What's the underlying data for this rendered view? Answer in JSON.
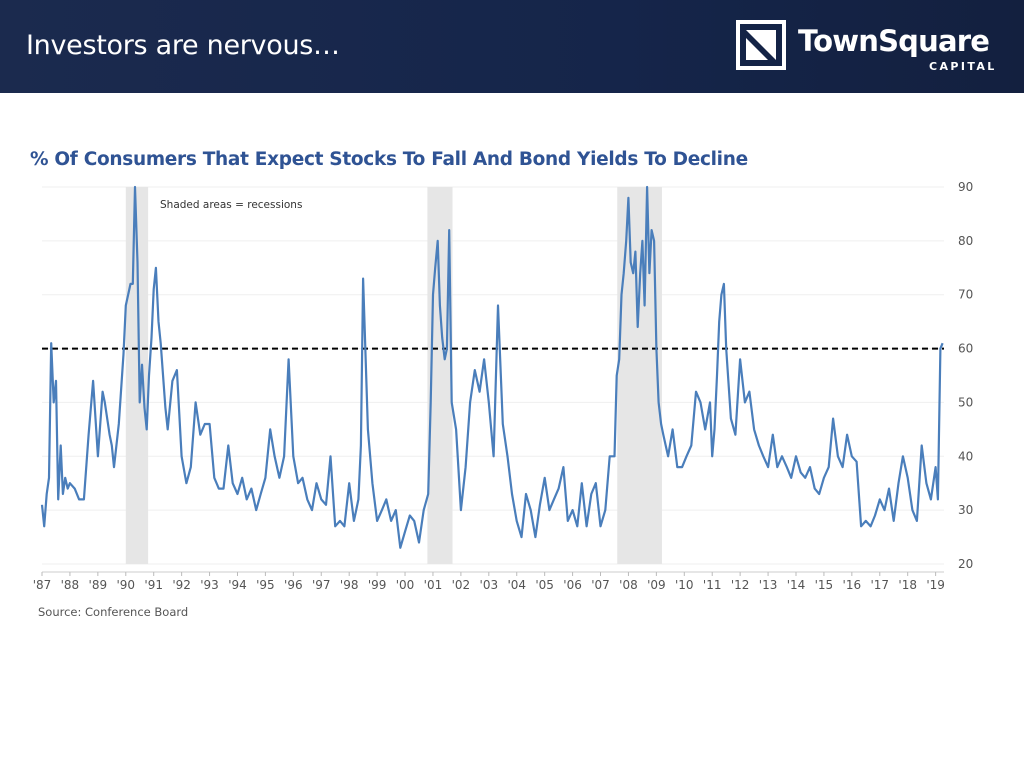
{
  "slide": {
    "title": "Investors are nervous…",
    "logo": {
      "name": "TownSquare",
      "sub": "CAPITAL"
    }
  },
  "colors": {
    "header": "#1b2a4e",
    "line": "#4a7ebb",
    "title": "#2f5394",
    "shade": "#e6e6e6",
    "threshold": "#000000"
  },
  "chart_data": {
    "type": "line",
    "title": "% Of Consumers That Expect Stocks To Fall And Bond Yields To Decline",
    "annotation": "Shaded areas = recessions",
    "source": "Source:  Conference Board",
    "ylim": [
      20,
      90
    ],
    "yticks": [
      20,
      30,
      40,
      50,
      60,
      70,
      80,
      90
    ],
    "y_axis_side": "right",
    "xlim": [
      1987,
      2019.3
    ],
    "xticks": [
      {
        "x": 1987,
        "label": "'87"
      },
      {
        "x": 1988,
        "label": "'88"
      },
      {
        "x": 1989,
        "label": "'89"
      },
      {
        "x": 1990,
        "label": "'90"
      },
      {
        "x": 1991,
        "label": "'91"
      },
      {
        "x": 1992,
        "label": "'92"
      },
      {
        "x": 1993,
        "label": "'93"
      },
      {
        "x": 1994,
        "label": "'94"
      },
      {
        "x": 1995,
        "label": "'95"
      },
      {
        "x": 1996,
        "label": "'96"
      },
      {
        "x": 1997,
        "label": "'97"
      },
      {
        "x": 1998,
        "label": "'98"
      },
      {
        "x": 1999,
        "label": "'99"
      },
      {
        "x": 2000,
        "label": "'00"
      },
      {
        "x": 2001,
        "label": "'01"
      },
      {
        "x": 2002,
        "label": "'02"
      },
      {
        "x": 2003,
        "label": "'03"
      },
      {
        "x": 2004,
        "label": "'04"
      },
      {
        "x": 2005,
        "label": "'05"
      },
      {
        "x": 2006,
        "label": "'06"
      },
      {
        "x": 2007,
        "label": "'07"
      },
      {
        "x": 2008,
        "label": "'08"
      },
      {
        "x": 2009,
        "label": "'09"
      },
      {
        "x": 2010,
        "label": "'10"
      },
      {
        "x": 2011,
        "label": "'11"
      },
      {
        "x": 2012,
        "label": "'12"
      },
      {
        "x": 2013,
        "label": "'13"
      },
      {
        "x": 2014,
        "label": "'14"
      },
      {
        "x": 2015,
        "label": "'15"
      },
      {
        "x": 2016,
        "label": "'16"
      },
      {
        "x": 2017,
        "label": "'17"
      },
      {
        "x": 2018,
        "label": "'18"
      },
      {
        "x": 2019,
        "label": "'19"
      }
    ],
    "grid": true,
    "threshold": 60,
    "recessions": [
      [
        1990.0,
        1990.8
      ],
      [
        2000.8,
        2001.7
      ],
      [
        2007.6,
        2009.2
      ]
    ],
    "series": [
      {
        "x": [
          1987.0,
          1987.08,
          1987.17,
          1987.25,
          1987.33,
          1987.42,
          1987.5,
          1987.58,
          1987.67,
          1987.75,
          1987.83,
          1987.92,
          1988.0,
          1988.17,
          1988.33,
          1988.5,
          1988.67,
          1988.83,
          1989.0,
          1989.17,
          1989.25,
          1989.42,
          1989.5,
          1989.58,
          1989.75,
          1989.92,
          1990.0,
          1990.17,
          1990.25,
          1990.33,
          1990.42,
          1990.5,
          1990.58,
          1990.67,
          1990.75,
          1990.83,
          1990.92,
          1991.0,
          1991.08,
          1991.17,
          1991.25,
          1991.42,
          1991.5,
          1991.67,
          1991.83,
          1992.0,
          1992.17,
          1992.33,
          1992.5,
          1992.67,
          1992.83,
          1993.0,
          1993.17,
          1993.33,
          1993.5,
          1993.67,
          1993.83,
          1994.0,
          1994.17,
          1994.33,
          1994.5,
          1994.67,
          1994.83,
          1995.0,
          1995.17,
          1995.33,
          1995.5,
          1995.67,
          1995.83,
          1996.0,
          1996.17,
          1996.33,
          1996.5,
          1996.67,
          1996.83,
          1997.0,
          1997.17,
          1997.33,
          1997.5,
          1997.67,
          1997.83,
          1998.0,
          1998.17,
          1998.25,
          1998.33,
          1998.42,
          1998.5,
          1998.67,
          1998.83,
          1999.0,
          1999.17,
          1999.33,
          1999.5,
          1999.67,
          1999.83,
          2000.0,
          2000.17,
          2000.33,
          2000.5,
          2000.67,
          2000.83,
          2000.92,
          2001.0,
          2001.08,
          2001.17,
          2001.25,
          2001.33,
          2001.42,
          2001.5,
          2001.58,
          2001.67,
          2001.83,
          2002.0,
          2002.17,
          2002.33,
          2002.5,
          2002.67,
          2002.83,
          2003.0,
          2003.17,
          2003.33,
          2003.5,
          2003.67,
          2003.83,
          2004.0,
          2004.17,
          2004.33,
          2004.5,
          2004.67,
          2004.83,
          2005.0,
          2005.17,
          2005.33,
          2005.5,
          2005.67,
          2005.83,
          2006.0,
          2006.17,
          2006.33,
          2006.5,
          2006.67,
          2006.83,
          2007.0,
          2007.17,
          2007.33,
          2007.5,
          2007.58,
          2007.67,
          2007.75,
          2007.83,
          2007.92,
          2008.0,
          2008.08,
          2008.17,
          2008.25,
          2008.33,
          2008.42,
          2008.5,
          2008.58,
          2008.67,
          2008.75,
          2008.83,
          2008.92,
          2009.0,
          2009.08,
          2009.17,
          2009.25,
          2009.42,
          2009.58,
          2009.75,
          2009.92,
          2010.08,
          2010.25,
          2010.42,
          2010.58,
          2010.75,
          2010.92,
          2011.0,
          2011.08,
          2011.17,
          2011.25,
          2011.33,
          2011.42,
          2011.5,
          2011.67,
          2011.83,
          2012.0,
          2012.17,
          2012.33,
          2012.5,
          2012.67,
          2012.83,
          2013.0,
          2013.17,
          2013.33,
          2013.5,
          2013.67,
          2013.83,
          2014.0,
          2014.17,
          2014.33,
          2014.5,
          2014.67,
          2014.83,
          2015.0,
          2015.17,
          2015.33,
          2015.5,
          2015.67,
          2015.83,
          2016.0,
          2016.17,
          2016.33,
          2016.5,
          2016.67,
          2016.83,
          2017.0,
          2017.17,
          2017.33,
          2017.5,
          2017.67,
          2017.83,
          2018.0,
          2018.17,
          2018.33,
          2018.5,
          2018.67,
          2018.83,
          2019.0,
          2019.08,
          2019.17,
          2019.25
        ],
        "y": [
          31,
          27,
          33,
          36,
          61,
          50,
          54,
          32,
          42,
          33,
          36,
          34,
          35,
          34,
          32,
          32,
          44,
          54,
          40,
          52,
          50,
          44,
          42,
          38,
          46,
          59,
          68,
          72,
          72,
          90,
          76,
          50,
          57,
          49,
          45,
          55,
          62,
          71,
          75,
          65,
          61,
          49,
          45,
          54,
          56,
          40,
          35,
          38,
          50,
          44,
          46,
          46,
          36,
          34,
          34,
          42,
          35,
          33,
          36,
          32,
          34,
          30,
          33,
          36,
          45,
          40,
          36,
          40,
          58,
          40,
          35,
          36,
          32,
          30,
          35,
          32,
          31,
          40,
          27,
          28,
          27,
          35,
          28,
          30,
          32,
          42,
          73,
          45,
          35,
          28,
          30,
          32,
          28,
          30,
          23,
          26,
          29,
          28,
          24,
          30,
          33,
          50,
          70,
          75,
          80,
          68,
          62,
          58,
          60,
          82,
          50,
          45,
          30,
          38,
          50,
          56,
          52,
          58,
          50,
          40,
          68,
          46,
          40,
          33,
          28,
          25,
          33,
          30,
          25,
          31,
          36,
          30,
          32,
          34,
          38,
          28,
          30,
          27,
          35,
          27,
          33,
          35,
          27,
          30,
          40,
          40,
          55,
          58,
          70,
          74,
          80,
          88,
          76,
          74,
          78,
          64,
          74,
          80,
          68,
          90,
          74,
          82,
          80,
          60,
          50,
          46,
          44,
          40,
          45,
          38,
          38,
          40,
          42,
          52,
          50,
          45,
          50,
          40,
          45,
          55,
          65,
          70,
          72,
          60,
          47,
          44,
          58,
          50,
          52,
          45,
          42,
          40,
          38,
          44,
          38,
          40,
          38,
          36,
          40,
          37,
          36,
          38,
          34,
          33,
          36,
          38,
          47,
          40,
          38,
          44,
          40,
          39,
          27,
          28,
          27,
          29,
          32,
          30,
          34,
          28,
          35,
          40,
          36,
          30,
          28,
          42,
          35,
          32,
          38,
          32,
          60,
          61
        ]
      }
    ]
  }
}
